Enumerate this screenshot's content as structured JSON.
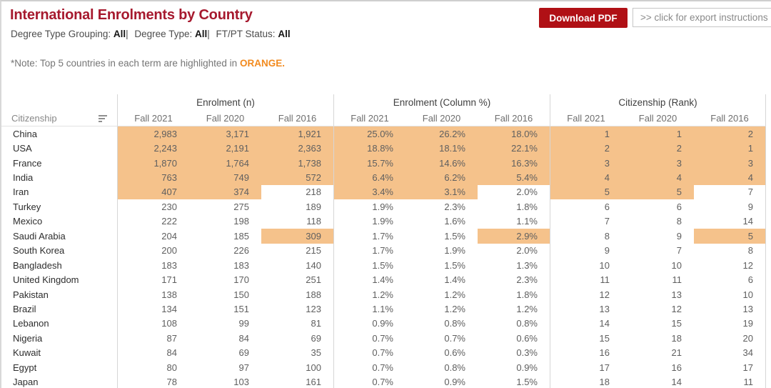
{
  "header": {
    "title": "International Enrolments by Country",
    "filters": [
      {
        "label": "Degree Type Grouping:",
        "value": "All"
      },
      {
        "label": "Degree Type:",
        "value": "All"
      },
      {
        "label": "FT/PT Status:",
        "value": "All"
      }
    ],
    "filter_separator": "|",
    "note_prefix": "*Note: Top 5 countries in each term are highlighted in ",
    "note_highlight": "ORANGE",
    "note_suffix": ".",
    "download_button_label": "Download PDF",
    "export_link_label": ">> click for export instructions"
  },
  "colors": {
    "title_red": "#A6192E",
    "button_red": "#B01015",
    "note_orange": "#F28A1E",
    "highlight_orange": "#F5C28B"
  },
  "icons": {
    "sort_icon": "sort-descending-bars"
  },
  "chart_data": {
    "type": "table",
    "title": "International Enrolments by Country",
    "row_header": "Citizenship",
    "column_groups": [
      "Enrolment (n)",
      "Enrolment (Column %)",
      "Citizenship (Rank)"
    ],
    "terms": [
      "Fall 2021",
      "Fall 2020",
      "Fall 2016"
    ],
    "highlight_rule": "Top 5 countries in each term are highlighted in orange",
    "rows": [
      {
        "country": "China",
        "enrolment": [
          "2,983",
          "3,171",
          "1,921"
        ],
        "column_pct": [
          "25.0%",
          "26.2%",
          "18.0%"
        ],
        "rank": [
          "1",
          "1",
          "2"
        ],
        "top5_terms": [
          true,
          true,
          true
        ]
      },
      {
        "country": "USA",
        "enrolment": [
          "2,243",
          "2,191",
          "2,363"
        ],
        "column_pct": [
          "18.8%",
          "18.1%",
          "22.1%"
        ],
        "rank": [
          "2",
          "2",
          "1"
        ],
        "top5_terms": [
          true,
          true,
          true
        ]
      },
      {
        "country": "France",
        "enrolment": [
          "1,870",
          "1,764",
          "1,738"
        ],
        "column_pct": [
          "15.7%",
          "14.6%",
          "16.3%"
        ],
        "rank": [
          "3",
          "3",
          "3"
        ],
        "top5_terms": [
          true,
          true,
          true
        ]
      },
      {
        "country": "India",
        "enrolment": [
          "763",
          "749",
          "572"
        ],
        "column_pct": [
          "6.4%",
          "6.2%",
          "5.4%"
        ],
        "rank": [
          "4",
          "4",
          "4"
        ],
        "top5_terms": [
          true,
          true,
          true
        ]
      },
      {
        "country": "Iran",
        "enrolment": [
          "407",
          "374",
          "218"
        ],
        "column_pct": [
          "3.4%",
          "3.1%",
          "2.0%"
        ],
        "rank": [
          "5",
          "5",
          "7"
        ],
        "top5_terms": [
          true,
          true,
          false
        ]
      },
      {
        "country": "Turkey",
        "enrolment": [
          "230",
          "275",
          "189"
        ],
        "column_pct": [
          "1.9%",
          "2.3%",
          "1.8%"
        ],
        "rank": [
          "6",
          "6",
          "9"
        ],
        "top5_terms": [
          false,
          false,
          false
        ]
      },
      {
        "country": "Mexico",
        "enrolment": [
          "222",
          "198",
          "118"
        ],
        "column_pct": [
          "1.9%",
          "1.6%",
          "1.1%"
        ],
        "rank": [
          "7",
          "8",
          "14"
        ],
        "top5_terms": [
          false,
          false,
          false
        ]
      },
      {
        "country": "Saudi Arabia",
        "enrolment": [
          "204",
          "185",
          "309"
        ],
        "column_pct": [
          "1.7%",
          "1.5%",
          "2.9%"
        ],
        "rank": [
          "8",
          "9",
          "5"
        ],
        "top5_terms": [
          false,
          false,
          true
        ]
      },
      {
        "country": "South Korea",
        "enrolment": [
          "200",
          "226",
          "215"
        ],
        "column_pct": [
          "1.7%",
          "1.9%",
          "2.0%"
        ],
        "rank": [
          "9",
          "7",
          "8"
        ],
        "top5_terms": [
          false,
          false,
          false
        ]
      },
      {
        "country": "Bangladesh",
        "enrolment": [
          "183",
          "183",
          "140"
        ],
        "column_pct": [
          "1.5%",
          "1.5%",
          "1.3%"
        ],
        "rank": [
          "10",
          "10",
          "12"
        ],
        "top5_terms": [
          false,
          false,
          false
        ]
      },
      {
        "country": "United Kingdom",
        "enrolment": [
          "171",
          "170",
          "251"
        ],
        "column_pct": [
          "1.4%",
          "1.4%",
          "2.3%"
        ],
        "rank": [
          "11",
          "11",
          "6"
        ],
        "top5_terms": [
          false,
          false,
          false
        ]
      },
      {
        "country": "Pakistan",
        "enrolment": [
          "138",
          "150",
          "188"
        ],
        "column_pct": [
          "1.2%",
          "1.2%",
          "1.8%"
        ],
        "rank": [
          "12",
          "13",
          "10"
        ],
        "top5_terms": [
          false,
          false,
          false
        ]
      },
      {
        "country": "Brazil",
        "enrolment": [
          "134",
          "151",
          "123"
        ],
        "column_pct": [
          "1.1%",
          "1.2%",
          "1.2%"
        ],
        "rank": [
          "13",
          "12",
          "13"
        ],
        "top5_terms": [
          false,
          false,
          false
        ]
      },
      {
        "country": "Lebanon",
        "enrolment": [
          "108",
          "99",
          "81"
        ],
        "column_pct": [
          "0.9%",
          "0.8%",
          "0.8%"
        ],
        "rank": [
          "14",
          "15",
          "19"
        ],
        "top5_terms": [
          false,
          false,
          false
        ]
      },
      {
        "country": "Nigeria",
        "enrolment": [
          "87",
          "84",
          "69"
        ],
        "column_pct": [
          "0.7%",
          "0.7%",
          "0.6%"
        ],
        "rank": [
          "15",
          "18",
          "20"
        ],
        "top5_terms": [
          false,
          false,
          false
        ]
      },
      {
        "country": "Kuwait",
        "enrolment": [
          "84",
          "69",
          "35"
        ],
        "column_pct": [
          "0.7%",
          "0.6%",
          "0.3%"
        ],
        "rank": [
          "16",
          "21",
          "34"
        ],
        "top5_terms": [
          false,
          false,
          false
        ]
      },
      {
        "country": "Egypt",
        "enrolment": [
          "80",
          "97",
          "100"
        ],
        "column_pct": [
          "0.7%",
          "0.8%",
          "0.9%"
        ],
        "rank": [
          "17",
          "16",
          "17"
        ],
        "top5_terms": [
          false,
          false,
          false
        ]
      },
      {
        "country": "Japan",
        "enrolment": [
          "78",
          "103",
          "161"
        ],
        "column_pct": [
          "0.7%",
          "0.9%",
          "1.5%"
        ],
        "rank": [
          "18",
          "14",
          "11"
        ],
        "top5_terms": [
          false,
          false,
          false
        ]
      }
    ]
  }
}
